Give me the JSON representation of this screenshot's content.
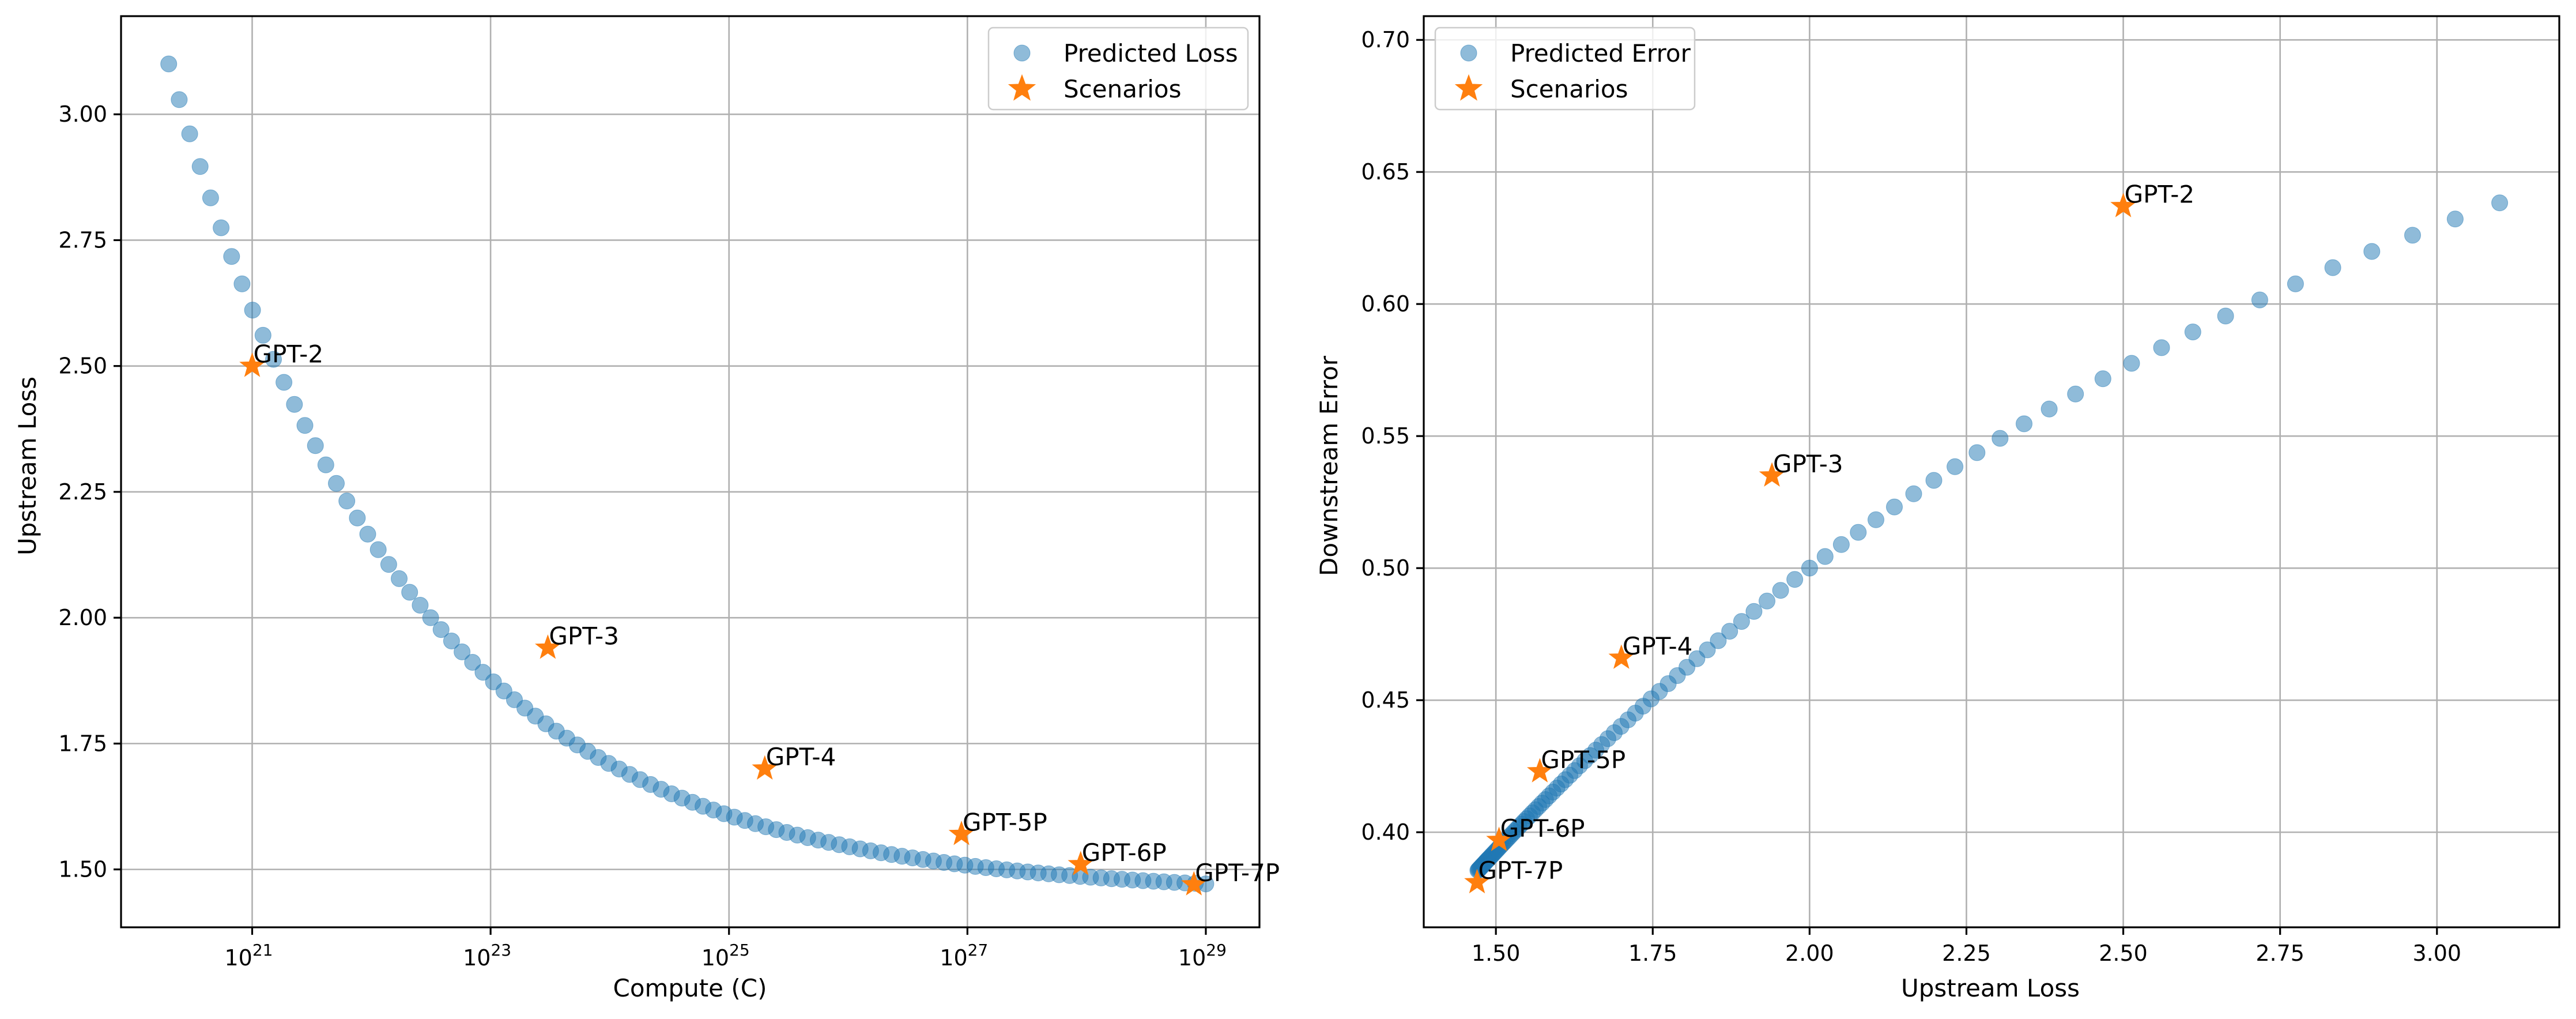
{
  "chart_data": [
    {
      "type": "scatter",
      "xscale": "log",
      "xlabel": "Compute (C)",
      "ylabel": "Upstream Loss",
      "xlim_log10": [
        19.9,
        29.45
      ],
      "ylim": [
        1.385,
        3.195
      ],
      "xticks": [
        21,
        23,
        25,
        27,
        29
      ],
      "xtick_labels": [
        {
          "base": "10",
          "exp": "21"
        },
        {
          "base": "10",
          "exp": "23"
        },
        {
          "base": "10",
          "exp": "25"
        },
        {
          "base": "10",
          "exp": "27"
        },
        {
          "base": "10",
          "exp": "29"
        }
      ],
      "yticks": [
        1.5,
        1.75,
        2.0,
        2.25,
        2.5,
        2.75,
        3.0
      ],
      "ytick_labels": [
        "1.50",
        "1.75",
        "2.00",
        "2.25",
        "2.50",
        "2.75",
        "3.00"
      ],
      "grid": true,
      "legend_position": "top-right",
      "legend": [
        "Predicted Loss",
        "Scenarios"
      ],
      "series": [
        {
          "name": "Predicted Loss",
          "marker": "circle",
          "color": "#1f77b4",
          "curve": {
            "formula": "L = 1.45 + 1.65 * exp(-0.5 * (log10(C) - 20.3))",
            "log10C_start": 20.3,
            "log10C_end": 29.0,
            "points": 100
          }
        },
        {
          "name": "Scenarios",
          "marker": "star",
          "color": "#ff7f0e",
          "points": [
            {
              "label": "GPT-2",
              "log10_x": 21.0,
              "y": 2.5
            },
            {
              "label": "GPT-3",
              "log10_x": 23.48,
              "y": 1.94
            },
            {
              "label": "GPT-4",
              "log10_x": 25.3,
              "y": 1.7
            },
            {
              "label": "GPT-5P",
              "log10_x": 26.95,
              "y": 1.57
            },
            {
              "label": "GPT-6P",
              "log10_x": 27.95,
              "y": 1.51
            },
            {
              "label": "GPT-7P",
              "log10_x": 28.9,
              "y": 1.47
            }
          ]
        }
      ]
    },
    {
      "type": "scatter",
      "xlabel": "Upstream Loss",
      "ylabel": "Downstream Error",
      "xlim": [
        1.385,
        3.195
      ],
      "ylim": [
        0.364,
        0.709
      ],
      "xticks": [
        1.5,
        1.75,
        2.0,
        2.25,
        2.5,
        2.75,
        3.0
      ],
      "xtick_labels": [
        "1.50",
        "1.75",
        "2.00",
        "2.25",
        "2.50",
        "2.75",
        "3.00"
      ],
      "yticks": [
        0.4,
        0.45,
        0.5,
        0.55,
        0.6,
        0.65,
        0.7
      ],
      "ytick_labels": [
        "0.40",
        "0.45",
        "0.50",
        "0.55",
        "0.60",
        "0.65",
        "0.70"
      ],
      "grid": true,
      "legend_position": "top-left",
      "legend": [
        "Predicted Error",
        "Scenarios"
      ],
      "series": [
        {
          "name": "Predicted Error",
          "marker": "circle",
          "color": "#1f77b4",
          "curve": {
            "formula": "E = 0.38 + 0.38 * (1 - exp(-0.69 * (L - 1.45)))",
            "uses_loss_series_of_chart": 0
          }
        },
        {
          "name": "Scenarios",
          "marker": "star",
          "color": "#ff7f0e",
          "points": [
            {
              "label": "GPT-2",
              "x": 2.5,
              "y": 0.637
            },
            {
              "label": "GPT-3",
              "x": 1.94,
              "y": 0.535
            },
            {
              "label": "GPT-4",
              "x": 1.7,
              "y": 0.466
            },
            {
              "label": "GPT-5P",
              "x": 1.57,
              "y": 0.423
            },
            {
              "label": "GPT-6P",
              "x": 1.505,
              "y": 0.397
            },
            {
              "label": "GPT-7P",
              "x": 1.47,
              "y": 0.381
            }
          ]
        }
      ]
    }
  ]
}
